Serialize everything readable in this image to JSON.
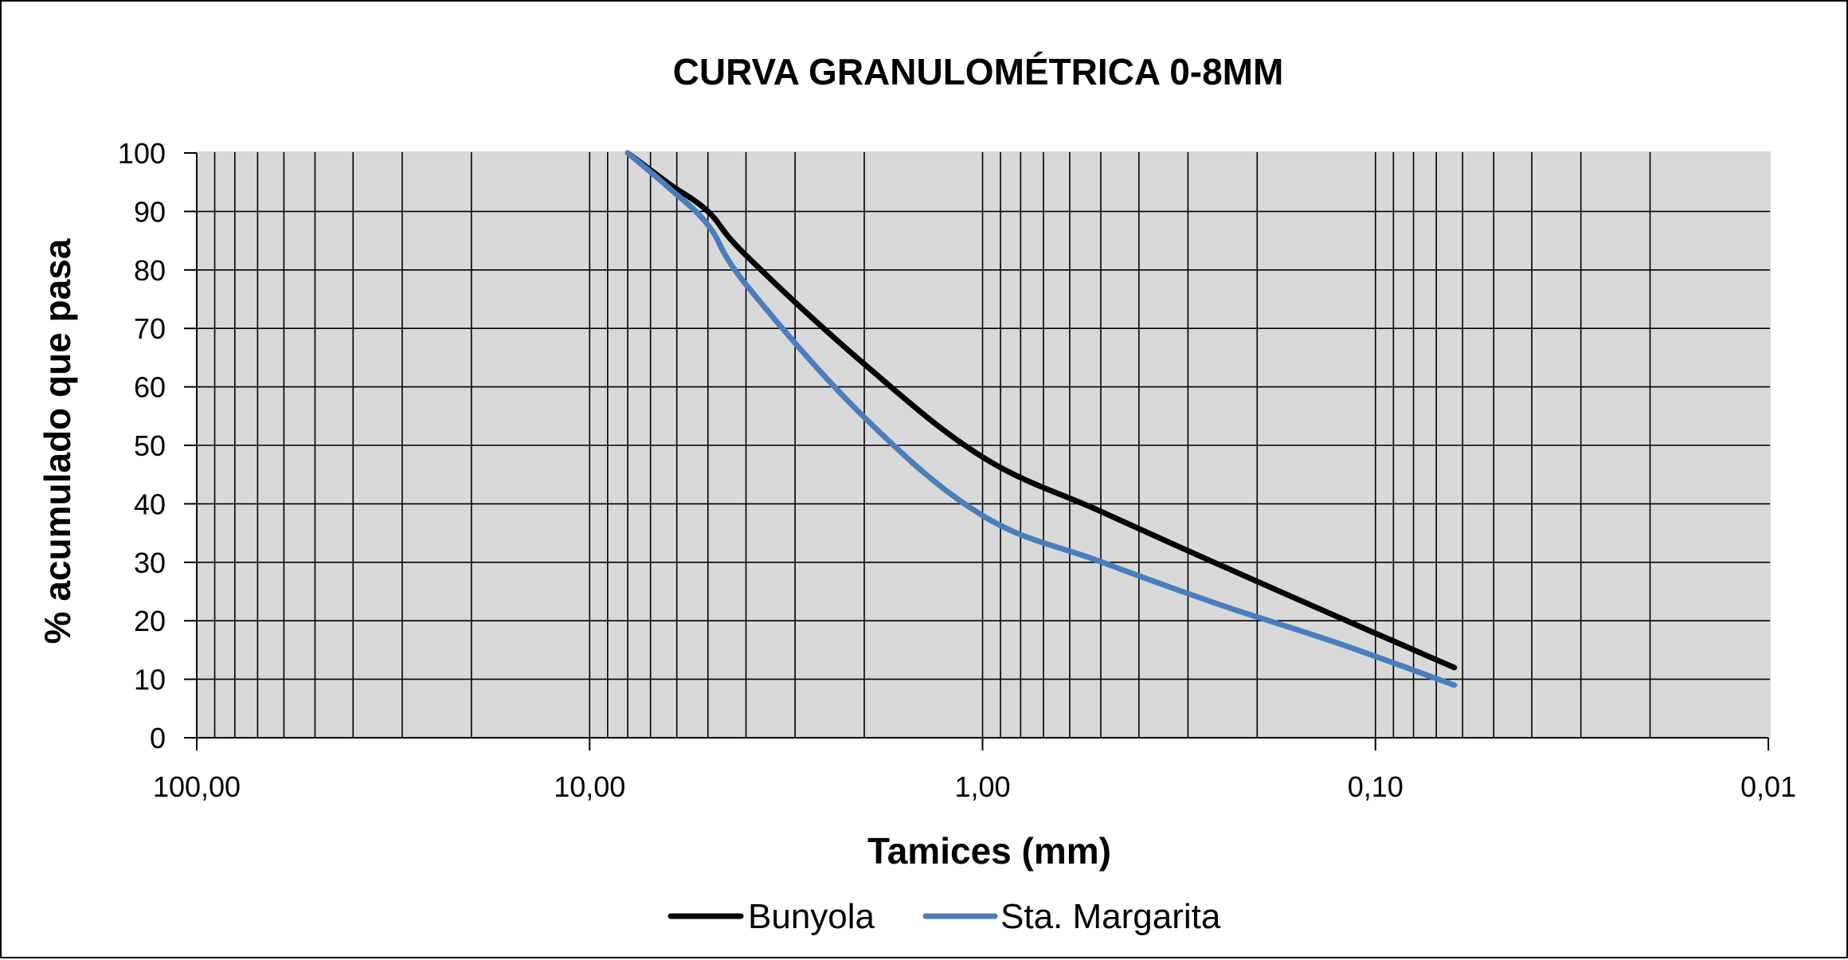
{
  "chart_data": {
    "type": "line",
    "title": "CURVA GRANULOMÉTRICA 0-8MM",
    "xlabel": "Tamices (mm)",
    "ylabel": "% acumulado que pasa",
    "x_scale": "log",
    "x_reversed": true,
    "xlim": [
      100,
      0.01
    ],
    "ylim": [
      0,
      100
    ],
    "x_ticks": [
      100,
      10,
      1,
      0.1,
      0.01
    ],
    "x_tick_labels": [
      "100,00",
      "10,00",
      "1,00",
      "0,10",
      "0,01"
    ],
    "y_ticks": [
      0,
      10,
      20,
      30,
      40,
      50,
      60,
      70,
      80,
      90,
      100
    ],
    "y_tick_labels": [
      "0",
      "10",
      "20",
      "30",
      "40",
      "50",
      "60",
      "70",
      "80",
      "90",
      "100"
    ],
    "grid": {
      "major_y": true,
      "minor_x_log": true
    },
    "legend_position": "bottom",
    "x": [
      8,
      6.3,
      5,
      4,
      2,
      1,
      0.5,
      0.25,
      0.125,
      0.063
    ],
    "series": [
      {
        "name": "Bunyola",
        "color": "#000000",
        "values": [
          100,
          94.8,
          90,
          82.5,
          63.9,
          48,
          38.7,
          29.6,
          20.7,
          12
        ]
      },
      {
        "name": "Sta. Margarita",
        "color": "#4a7ebb",
        "values": [
          100,
          94.1,
          87.7,
          77.5,
          54.8,
          38,
          30.1,
          22.8,
          16.2,
          9
        ]
      }
    ]
  },
  "colors": {
    "plot_background": "#d9d9d9",
    "gridline": "#000000",
    "frame": "#000000"
  }
}
